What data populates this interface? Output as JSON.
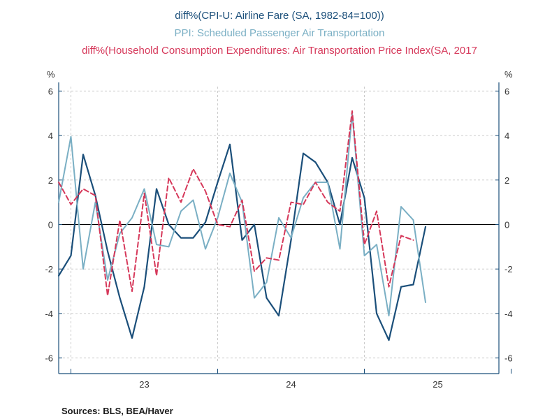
{
  "chart_data": {
    "type": "line",
    "titles": [
      {
        "text": "diff%(CPI-U: Airline Fare (SA, 1982-84=100))",
        "color": "#1b4f7a"
      },
      {
        "text": "PPI: Scheduled Passenger Air Transportation",
        "color": "#7aafc4"
      },
      {
        "text": "diff%(Household Consumption Expenditures: Air Transportation Price Index(SA, 2017",
        "color": "#d6385a"
      }
    ],
    "y_unit_left": "%",
    "y_unit_right": "%",
    "ylim": [
      -6.2,
      6.2
    ],
    "yticks": [
      6,
      4,
      2,
      0,
      -2,
      -4,
      -6
    ],
    "x_start": "2022-12",
    "x_end": "2025-12",
    "x_year_ticks": [
      "2023-01",
      "2024-01",
      "2025-01",
      "2026-01"
    ],
    "x_year_labels": [
      {
        "label": "23",
        "at": "2023-07"
      },
      {
        "label": "24",
        "at": "2024-07"
      },
      {
        "label": "25",
        "at": "2025-07"
      }
    ],
    "grid": true,
    "zero_line": true,
    "series": [
      {
        "key": "cpi",
        "color": "#1b4f7a",
        "dash": false,
        "x": [
          "2022-12",
          "2023-01",
          "2023-02",
          "2023-03",
          "2023-04",
          "2023-05",
          "2023-06",
          "2023-07",
          "2023-08",
          "2023-09",
          "2023-10",
          "2023-11",
          "2023-12",
          "2024-01",
          "2024-02",
          "2024-03",
          "2024-04",
          "2024-05",
          "2024-06",
          "2024-07",
          "2024-08",
          "2024-09",
          "2024-10",
          "2024-11",
          "2024-12",
          "2025-01",
          "2025-02",
          "2025-03",
          "2025-04",
          "2025-05",
          "2025-06"
        ],
        "values": [
          -2.3,
          -1.4,
          3.15,
          1.3,
          -1.2,
          -3.3,
          -5.1,
          -2.8,
          1.6,
          0.0,
          -0.6,
          -0.6,
          0.1,
          1.9,
          3.6,
          -0.7,
          0.0,
          -3.3,
          -4.1,
          -0.7,
          3.2,
          2.8,
          1.9,
          0.0,
          3.0,
          1.2,
          -4.0,
          -5.2,
          -2.8,
          -2.7,
          -0.1
        ]
      },
      {
        "key": "ppi",
        "color": "#7aafc4",
        "dash": false,
        "x": [
          "2022-12",
          "2023-01",
          "2023-02",
          "2023-03",
          "2023-04",
          "2023-05",
          "2023-06",
          "2023-07",
          "2023-08",
          "2023-09",
          "2023-10",
          "2023-11",
          "2023-12",
          "2024-01",
          "2024-02",
          "2024-03",
          "2024-04",
          "2024-05",
          "2024-06",
          "2024-07",
          "2024-08",
          "2024-09",
          "2024-10",
          "2024-11",
          "2024-12",
          "2025-01",
          "2025-02",
          "2025-03",
          "2025-04",
          "2025-05",
          "2025-06"
        ],
        "values": [
          1.0,
          3.95,
          -2.0,
          1.0,
          -2.5,
          -0.4,
          0.3,
          1.6,
          -0.9,
          -1.0,
          0.6,
          1.1,
          -1.1,
          0.3,
          2.3,
          1.0,
          -3.3,
          -2.6,
          0.3,
          -0.6,
          1.2,
          1.9,
          1.9,
          -1.1,
          5.0,
          -1.4,
          -0.9,
          -4.1,
          0.8,
          0.2,
          -3.5
        ]
      },
      {
        "key": "pce",
        "color": "#d6385a",
        "dash": true,
        "x": [
          "2022-12",
          "2023-01",
          "2023-02",
          "2023-03",
          "2023-04",
          "2023-05",
          "2023-06",
          "2023-07",
          "2023-08",
          "2023-09",
          "2023-10",
          "2023-11",
          "2023-12",
          "2024-01",
          "2024-02",
          "2024-03",
          "2024-04",
          "2024-05",
          "2024-06",
          "2024-07",
          "2024-08",
          "2024-09",
          "2024-10",
          "2024-11",
          "2024-12",
          "2025-01",
          "2025-02",
          "2025-03",
          "2025-04",
          "2025-05"
        ],
        "values": [
          1.9,
          0.9,
          1.6,
          1.3,
          -3.2,
          0.2,
          -3.0,
          1.4,
          -2.3,
          2.1,
          1.0,
          2.5,
          1.5,
          0.0,
          -0.1,
          1.1,
          -2.1,
          -1.5,
          -1.6,
          1.0,
          0.9,
          1.9,
          1.0,
          0.6,
          5.1,
          -0.9,
          0.6,
          -2.8,
          -0.5,
          -0.7
        ]
      }
    ]
  },
  "source_note": "Sources:  BLS, BEA/Haver"
}
